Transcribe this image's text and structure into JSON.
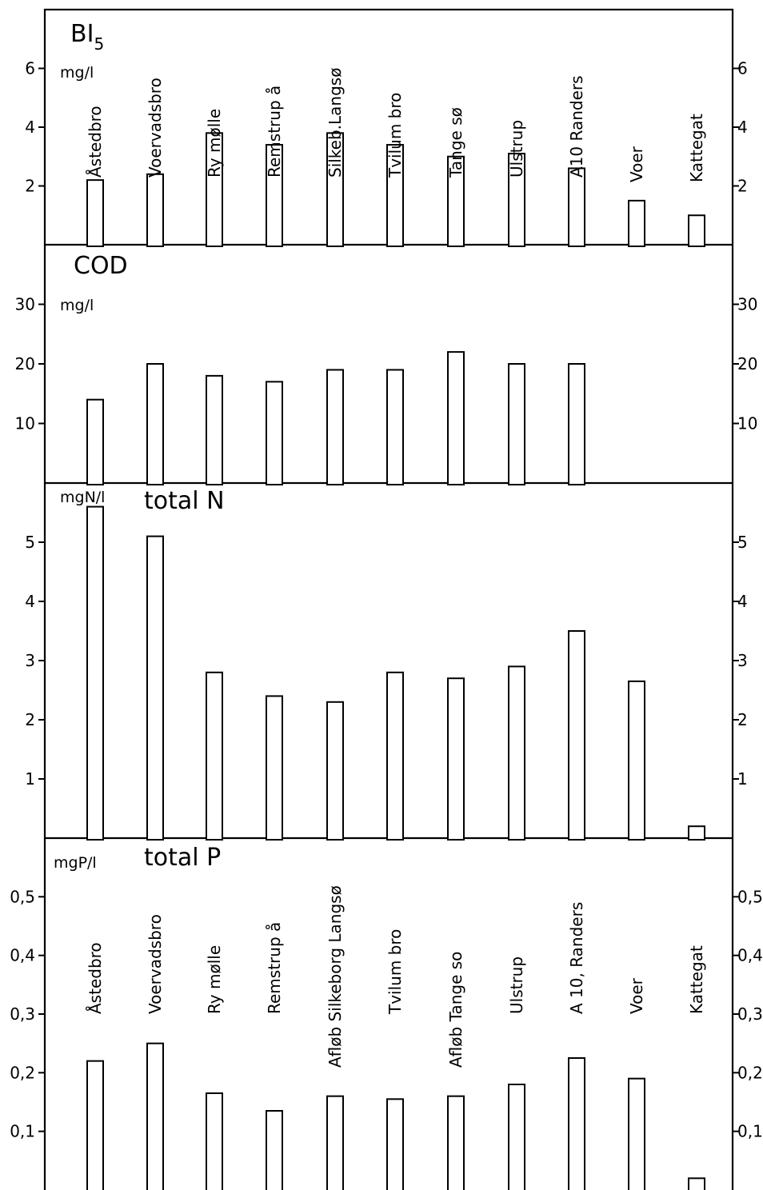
{
  "chart_data": [
    {
      "type": "bar",
      "title": "BI5",
      "title_main": "BI",
      "title_sub": "5",
      "ylabel": "mg/l",
      "ylim": [
        0,
        8
      ],
      "ticks": [
        2,
        4,
        6
      ],
      "tick_labels": [
        "2",
        "4",
        "6"
      ],
      "categories": [
        "Åstedbro",
        "Voervadsbro",
        "Ry mølle",
        "Remstrup å",
        "Silkeb.Langsø",
        "Tvilum bro",
        "Tange sø",
        "Ulstrup",
        "A10 Randers",
        "Voer",
        "Kattegat"
      ],
      "values": [
        2.2,
        2.4,
        3.8,
        3.4,
        3.8,
        3.4,
        3.0,
        3.1,
        2.6,
        1.5,
        1.0
      ]
    },
    {
      "type": "bar",
      "title": "COD",
      "ylabel": "mg/l",
      "ylim": [
        0,
        40
      ],
      "ticks": [
        10,
        20,
        30
      ],
      "tick_labels": [
        "10",
        "20",
        "30"
      ],
      "categories": [
        "Åstedbro",
        "Voervadsbro",
        "Ry mølle",
        "Remstrup å",
        "Silkeb.Langsø",
        "Tvilum bro",
        "Tange sø",
        "Ulstrup",
        "A10 Randers",
        "Voer",
        "Kattegat"
      ],
      "values": [
        14,
        20,
        18,
        17,
        19,
        19,
        22,
        20,
        20,
        null,
        null
      ]
    },
    {
      "type": "bar",
      "title": "total N",
      "ylabel": "mgN/l",
      "ylim": [
        0,
        6
      ],
      "ticks": [
        1,
        2,
        3,
        4,
        5
      ],
      "tick_labels": [
        "1",
        "2",
        "3",
        "4",
        "5"
      ],
      "categories": [
        "Åstedbro",
        "Voervadsbro",
        "Ry mølle",
        "Remstrup å",
        "Silkeb.Langsø",
        "Tvilum bro",
        "Tange sø",
        "Ulstrup",
        "A10 Randers",
        "Voer",
        "Kattegat"
      ],
      "values": [
        5.6,
        5.1,
        2.8,
        2.4,
        2.3,
        2.8,
        2.7,
        2.9,
        3.5,
        2.65,
        0.2
      ]
    },
    {
      "type": "bar",
      "title": "total P",
      "ylabel": "mgP/l",
      "ylim": [
        0,
        0.6
      ],
      "ticks": [
        0.1,
        0.2,
        0.3,
        0.4,
        0.5
      ],
      "tick_labels": [
        "0,1",
        "0,2",
        "0,3",
        "0,4",
        "0,5"
      ],
      "categories": [
        "Åstedbro",
        "Voervadsbro",
        "Ry mølle",
        "Remstrup å",
        "Afløb Silkeborg Langsø",
        "Tvilum bro",
        "Afløb Tange so",
        "Ulstrup",
        "A 10, Randers",
        "Voer",
        "Kattegat"
      ],
      "values": [
        0.22,
        0.25,
        0.165,
        0.135,
        0.16,
        0.155,
        0.16,
        0.18,
        0.225,
        0.19,
        0.02
      ]
    }
  ]
}
